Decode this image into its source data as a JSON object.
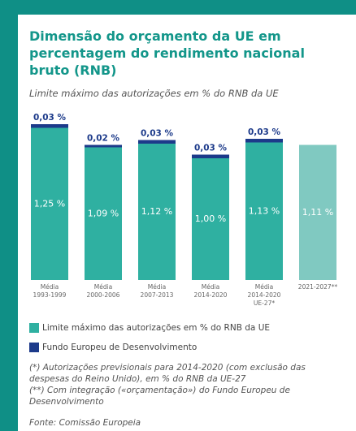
{
  "chart_data": {
    "type": "bar",
    "stacked": true,
    "title": "Dimensão do orçamento da UE em percentagem do rendimento nacional bruto (RNB)",
    "subtitle": "Limite máximo das autorizações em % do RNB da UE",
    "categories": [
      "Média\n1993-1999",
      "Média\n2000-2006",
      "Média\n2007-2013",
      "Média\n2014-2020",
      "Média\n2014-2020\nUE-27*",
      "2021-2027**"
    ],
    "series": [
      {
        "name": "Limite máximo das autorizações em % do RNB da UE",
        "color": "#2fb0a1",
        "colors": [
          "#2fb0a1",
          "#2fb0a1",
          "#2fb0a1",
          "#2fb0a1",
          "#2fb0a1",
          "#80c9c1"
        ],
        "values": [
          1.25,
          1.09,
          1.12,
          1.0,
          1.13,
          1.11
        ],
        "value_labels": [
          "1,25 %",
          "1,09 %",
          "1,12 %",
          "1,00 %",
          "1,13 %",
          "1,11 %"
        ]
      },
      {
        "name": "Fundo Europeu de Desenvolvimento",
        "color": "#1c3a8a",
        "values": [
          0.03,
          0.02,
          0.03,
          0.03,
          0.03,
          null
        ],
        "value_labels": [
          "0,03 %",
          "0,02 %",
          "0,03 %",
          "0,03 %",
          "0,03 %",
          null
        ]
      }
    ],
    "ylim": [
      0,
      1.4
    ],
    "notes": [
      "(*) Autorizações previsionais para 2014-2020 (com exclusão das despesas do Reino Unido), em % do RNB da UE-27",
      "(**) Com integração («orçamentação») do Fundo Europeu de Desenvolvimento"
    ],
    "source": "Fonte: Comissão Europeia"
  }
}
